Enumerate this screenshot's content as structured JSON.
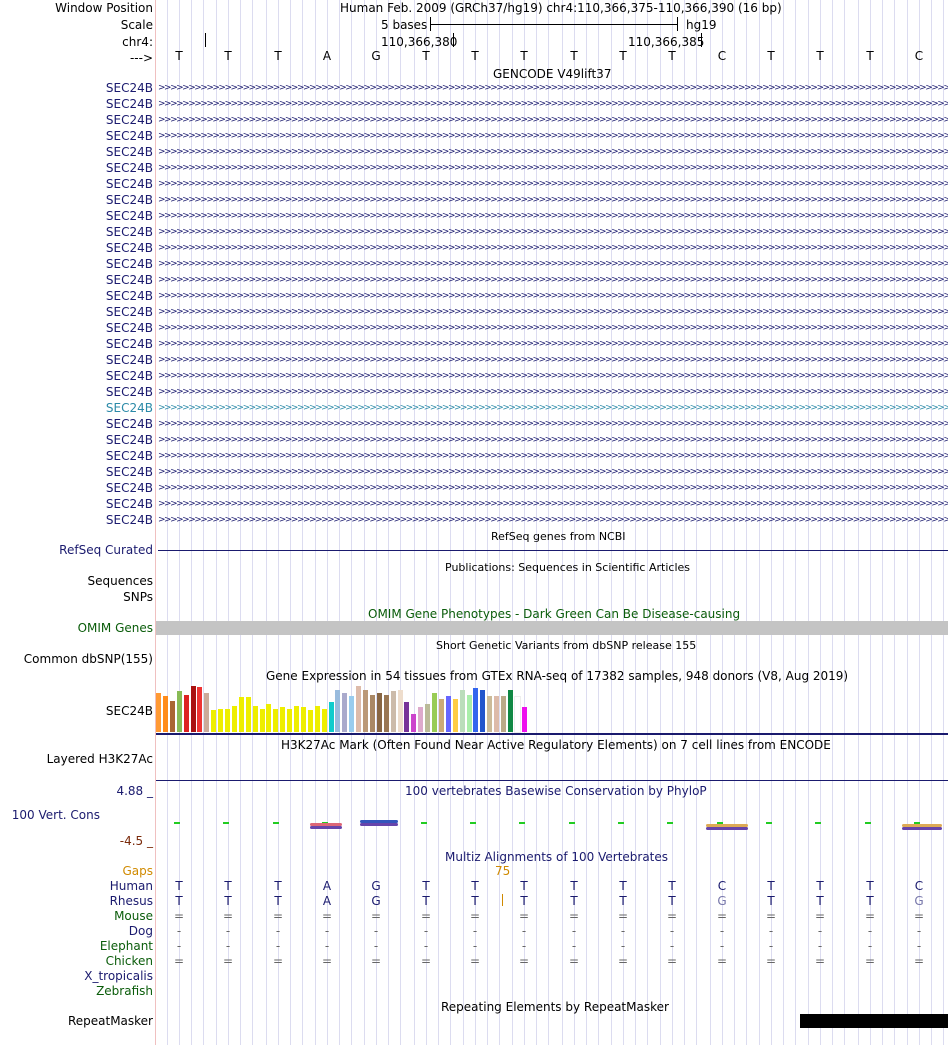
{
  "header": {
    "window_position_label": "Window Position",
    "scale_label": "Scale",
    "chrom_label": "chr4:",
    "strand_label": "--->",
    "assembly_text": "Human Feb. 2009 (GRCh37/hg19)   chr4:110,366,375-110,366,390 (16 bp)",
    "scale_text": "5 bases",
    "db_text": "hg19",
    "pos1": "110,366,380",
    "pos2": "110,366,385"
  },
  "sequence": [
    "T",
    "T",
    "T",
    "A",
    "G",
    "T",
    "T",
    "T",
    "T",
    "T",
    "T",
    "C",
    "T",
    "T",
    "T",
    "C"
  ],
  "gencode": {
    "title": "GENCODE V49lift37",
    "gene_label": "SEC24B",
    "row_count": 28,
    "highlight_row_index": 20,
    "chevron_text": ">>>>>>>>>>>>>>>>>>>>>>>>>>>>>>>>>>>>>>>>>>>>>>>>>>>>>>>>>>>>>>>>>>>>>>>>>>>>>>>>>>>>>>>>>>>>>>>>>>>>>>>>>>>>>>>>>>>>>>>>>>>>>>>>>>>>>>>>>>>>>>>>>>>>>>>>"
  },
  "tracks": {
    "refseq_title": "RefSeq genes from NCBI",
    "refseq_label": "RefSeq Curated",
    "pubs_title": "Publications: Sequences in Scientific Articles",
    "sequences_label": "Sequences",
    "snps_label": "SNPs",
    "omim_title": "OMIM Gene Phenotypes - Dark Green Can Be Disease-causing",
    "omim_label": "OMIM Genes",
    "dbsnp_title": "Short Genetic Variants from dbSNP release 155",
    "dbsnp_label": "Common dbSNP(155)",
    "gtex_title": "Gene Expression in 54 tissues from GTEx RNA-seq of 17382 samples, 948 donors (V8, Aug 2019)",
    "gtex_label": "SEC24B",
    "h3k_title": "H3K27Ac Mark (Often Found Near Active Regulatory Elements) on 7 cell lines from ENCODE",
    "h3k_label": "Layered H3K27Ac",
    "cons_title": "100 vertebrates Basewise Conservation by PhyloP",
    "cons_max": "4.88 _",
    "cons_label": "100 Vert. Cons",
    "cons_min": "-4.5 _",
    "multiz_title": "Multiz Alignments of 100 Vertebrates",
    "gaps_label": "Gaps",
    "gap_number": "75",
    "rmsk_title": "Repeating Elements by RepeatMasker",
    "rmsk_label": "RepeatMasker"
  },
  "gtex_colors": [
    "#ff9933",
    "#ff8c1a",
    "#aa6633",
    "#88bb55",
    "#dd2222",
    "#aa1111",
    "#ee3333",
    "#ccaa99",
    "#eeee00",
    "#eeee00",
    "#eeee00",
    "#eeee00",
    "#eeee00",
    "#eeee00",
    "#eeee00",
    "#eeee00",
    "#eeee00",
    "#eeee00",
    "#eeee00",
    "#eeee00",
    "#eeee00",
    "#eeee00",
    "#eeee00",
    "#eeee00",
    "#eeee00",
    "#11cccc",
    "#99bbdd",
    "#aaaacc",
    "#99ccee",
    "#ddbbaa",
    "#bb9977",
    "#aa8866",
    "#886644",
    "#997755",
    "#ccbbaa",
    "#eeddcc",
    "#773399",
    "#cc44cc",
    "#ddaacc",
    "#bbbb99",
    "#99cc55",
    "#ccaa77",
    "#6666ff",
    "#ffcc44",
    "#bbddbb",
    "#aaeeaa",
    "#3366ee",
    "#2255cc",
    "#ccbb99",
    "#ddbbaa",
    "#bbaa88",
    "#118844",
    "#ffffff",
    "#ee11ee"
  ],
  "gtex_levels": [
    0.82,
    0.75,
    0.65,
    0.85,
    0.78,
    0.95,
    0.93,
    0.82,
    0.45,
    0.48,
    0.48,
    0.55,
    0.72,
    0.72,
    0.55,
    0.48,
    0.58,
    0.48,
    0.52,
    0.48,
    0.55,
    0.52,
    0.45,
    0.55,
    0.48,
    0.62,
    0.88,
    0.82,
    0.75,
    0.95,
    0.88,
    0.78,
    0.82,
    0.78,
    0.85,
    0.88,
    0.62,
    0.38,
    0.52,
    0.58,
    0.82,
    0.68,
    0.75,
    0.68,
    0.88,
    0.78,
    0.92,
    0.88,
    0.75,
    0.75,
    0.75,
    0.88,
    0.72,
    0.52
  ],
  "species": [
    {
      "name": "Human",
      "color": "#1a1a6e",
      "row": [
        "T",
        "T",
        "T",
        "A",
        "G",
        "T",
        "T",
        "T",
        "T",
        "T",
        "T",
        "C",
        "T",
        "T",
        "T",
        "C"
      ]
    },
    {
      "name": "Rhesus",
      "color": "#1a1a6e",
      "row": [
        "T",
        "T",
        "T",
        "A",
        "G",
        "T",
        "T",
        "T",
        "T",
        "T",
        "T",
        "G",
        "T",
        "T",
        "T",
        "G"
      ]
    },
    {
      "name": "Mouse",
      "color": "#0a5c0a",
      "row": [
        "=",
        "=",
        "=",
        "=",
        "=",
        "=",
        "=",
        "=",
        "=",
        "=",
        "=",
        "=",
        "=",
        "=",
        "=",
        "="
      ]
    },
    {
      "name": "Dog",
      "color": "#1a1a6e",
      "row": [
        "-",
        "-",
        "-",
        "-",
        "-",
        "-",
        "-",
        "-",
        "-",
        "-",
        "-",
        "-",
        "-",
        "-",
        "-",
        "-"
      ]
    },
    {
      "name": "Elephant",
      "color": "#0a5c0a",
      "row": [
        "-",
        "-",
        "-",
        "-",
        "-",
        "-",
        "-",
        "-",
        "-",
        "-",
        "-",
        "-",
        "-",
        "-",
        "-",
        "-"
      ]
    },
    {
      "name": "Chicken",
      "color": "#0a5c0a",
      "row": [
        "=",
        "=",
        "=",
        "=",
        "=",
        "=",
        "=",
        "=",
        "=",
        "=",
        "=",
        "=",
        "=",
        "=",
        "=",
        "="
      ]
    },
    {
      "name": "X_tropicalis",
      "color": "#1a1a6e",
      "row": [
        "",
        "",
        "",
        "",
        "",
        "",
        "",
        "",
        "",
        "",
        "",
        "",
        "",
        "",
        "",
        ""
      ]
    },
    {
      "name": "Zebrafish",
      "color": "#0a5c0a",
      "row": [
        "",
        "",
        "",
        "",
        "",
        "",
        "",
        "",
        "",
        "",
        "",
        "",
        "",
        "",
        "",
        ""
      ]
    }
  ]
}
